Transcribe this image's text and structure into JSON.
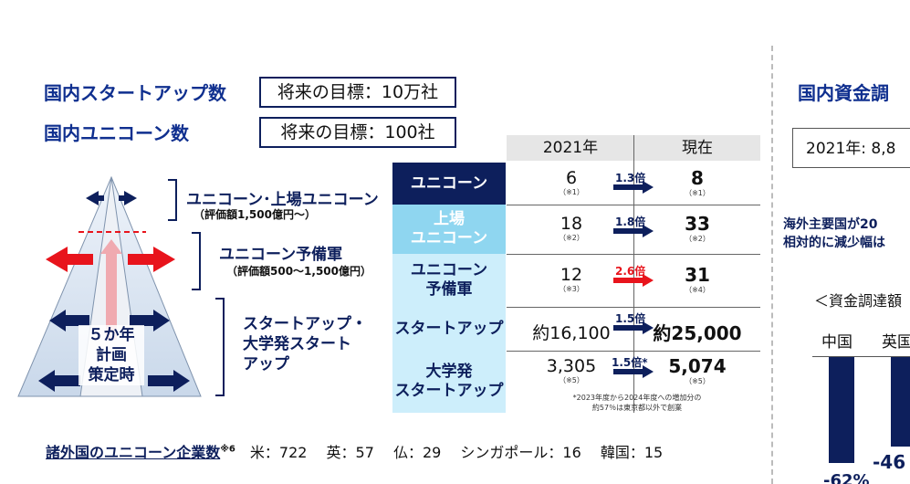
{
  "left": {
    "heading_startups": "国内スタートアップ数",
    "goal_startups": "将来の目標：10万社",
    "heading_unicorns": "国内ユニコーン数",
    "goal_unicorns": "将来の目標：100社"
  },
  "triangle": {
    "center_text_1": "５か年",
    "center_text_2": "計画",
    "center_text_3": "策定時",
    "label_unicorn": "ユニコーン･上場ユニコーン",
    "label_unicorn_sub": "（評価額1,500億円～）",
    "label_reserve": "ユニコーン予備軍",
    "label_reserve_sub": "（評価額500～1,500億円）",
    "label_startup": "スタートアップ・\n大学発スタート\nアップ"
  },
  "table": {
    "col_2021": "2021年",
    "col_now": "現在",
    "rows": [
      {
        "label": "ユニコーン",
        "v2021": "6",
        "n2021": "（※1）",
        "mult": "1.3倍",
        "now": "8",
        "nnow": "（※1）"
      },
      {
        "label": "上場\nユニコーン",
        "v2021": "18",
        "n2021": "（※2）",
        "mult": "1.8倍",
        "now": "33",
        "nnow": "（※2）"
      },
      {
        "label": "ユニコーン\n予備軍",
        "v2021": "12",
        "n2021": "（※3）",
        "mult": "2.6倍",
        "now": "31",
        "nnow": "（※4）"
      },
      {
        "label": "スタートアップ",
        "v2021": "約16,100",
        "n2021": "",
        "mult": "1.5倍",
        "now": "約25,000",
        "nnow": ""
      },
      {
        "label": "大学発\nスタートアップ",
        "v2021": "3,305",
        "n2021": "（※5）",
        "mult": "1.5倍*",
        "now": "5,074",
        "nnow": "（※5）"
      }
    ],
    "footnote_1": "*2023年度から2024年度への増加分の",
    "footnote_2": "約57％は東京都以外で創業"
  },
  "footer": {
    "label": "諸外国のユニコーン企業数",
    "sup": "※6",
    "counts": "　米：722　 英：57　 仏：29　 シンガポール：16　 韓国：15"
  },
  "right": {
    "heading": "国内資金調",
    "box_text": "2021年: 8,8",
    "bold_line_1": "海外主要国が20",
    "bold_line_2": "相対的に減少幅は",
    "sub_heading": "＜資金調達額",
    "country_1": "中国",
    "country_2": "英国",
    "value_1": "-62%",
    "value_2": "-46"
  },
  "colors": {
    "navy": "#0d1f5c",
    "heading_blue": "#0f2f8f",
    "light_blue": "#8fd6f0",
    "pale_blue": "#cdeefb",
    "red": "#e8141c"
  }
}
